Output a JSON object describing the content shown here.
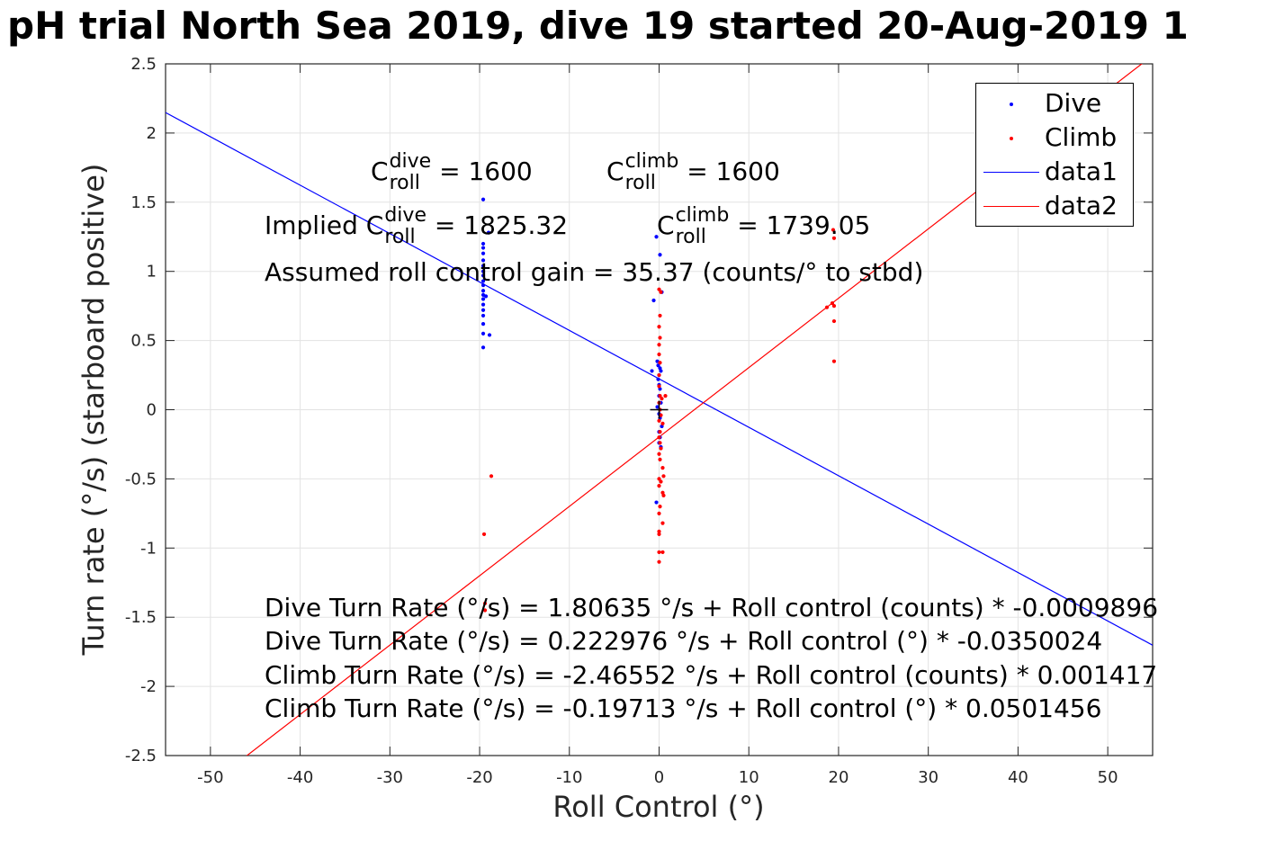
{
  "chart_data": {
    "type": "scatter",
    "title": "pH trial North Sea 2019, dive 19 started 20-Aug-2019 1",
    "xlabel": "Roll Control (°)",
    "ylabel": "Turn rate (°/s) (starboard positive)",
    "xlim": [
      -55,
      55
    ],
    "ylim": [
      -2.5,
      2.5
    ],
    "xticks": [
      -50,
      -40,
      -30,
      -20,
      -10,
      0,
      10,
      20,
      30,
      40,
      50
    ],
    "yticks": [
      -2.5,
      -2,
      -1.5,
      -1,
      -0.5,
      0,
      0.5,
      1,
      1.5,
      2,
      2.5
    ],
    "xtick_labels": [
      "-50",
      "-40",
      "-30",
      "-20",
      "-10",
      "0",
      "10",
      "20",
      "30",
      "40",
      "50"
    ],
    "ytick_labels": [
      "-2.5",
      "-2",
      "-1.5",
      "-1",
      "-0.5",
      "0",
      "0.5",
      "1",
      "1.5",
      "2",
      "2.5"
    ],
    "grid": true,
    "legend_position": "top-right",
    "series": [
      {
        "name": "Dive",
        "kind": "points",
        "color": "#0000ff",
        "points": [
          [
            -19.6,
            1.52
          ],
          [
            -19.6,
            1.2
          ],
          [
            -19.6,
            1.17
          ],
          [
            -19.6,
            1.13
          ],
          [
            -19.6,
            1.08
          ],
          [
            -19.6,
            1.04
          ],
          [
            -19.6,
            1.0
          ],
          [
            -19.6,
            0.97
          ],
          [
            -19.6,
            0.93
          ],
          [
            -19.6,
            0.9
          ],
          [
            -19.6,
            0.86
          ],
          [
            -19.6,
            0.83
          ],
          [
            -19.6,
            0.8
          ],
          [
            -19.6,
            0.76
          ],
          [
            -19.6,
            0.72
          ],
          [
            -19.6,
            0.68
          ],
          [
            -19.6,
            0.62
          ],
          [
            -19.6,
            0.55
          ],
          [
            -19.6,
            0.45
          ],
          [
            -19.3,
            0.82
          ],
          [
            -19.0,
            1.28
          ],
          [
            -18.9,
            0.54
          ],
          [
            -0.3,
            1.25
          ],
          [
            0.1,
            1.12
          ],
          [
            0.3,
            0.85
          ],
          [
            -0.6,
            0.79
          ],
          [
            -0.8,
            0.28
          ],
          [
            -0.2,
            0.35
          ],
          [
            -0.1,
            0.32
          ],
          [
            0.1,
            0.3
          ],
          [
            0.2,
            0.28
          ],
          [
            0.0,
            0.25
          ],
          [
            -0.1,
            0.22
          ],
          [
            0.0,
            0.18
          ],
          [
            0.1,
            0.15
          ],
          [
            0.0,
            0.1
          ],
          [
            0.2,
            0.05
          ],
          [
            -0.2,
            0.02
          ],
          [
            0.0,
            -0.03
          ],
          [
            0.1,
            -0.06
          ],
          [
            0.3,
            -0.12
          ],
          [
            0.0,
            -0.16
          ],
          [
            0.1,
            -0.2
          ],
          [
            0.0,
            -0.24
          ],
          [
            0.2,
            -0.27
          ],
          [
            -0.3,
            -0.67
          ]
        ]
      },
      {
        "name": "Climb",
        "kind": "points",
        "color": "#ff0000",
        "points": [
          [
            -19.5,
            -0.9
          ],
          [
            -18.7,
            -0.48
          ],
          [
            -19.4,
            -1.4
          ],
          [
            -19.4,
            -1.45
          ],
          [
            0.0,
            0.87
          ],
          [
            0.2,
            0.85
          ],
          [
            0.1,
            0.68
          ],
          [
            0.0,
            0.6
          ],
          [
            0.1,
            0.52
          ],
          [
            0.0,
            0.47
          ],
          [
            0.0,
            0.4
          ],
          [
            0.1,
            0.34
          ],
          [
            0.0,
            0.25
          ],
          [
            0.0,
            0.17
          ],
          [
            0.1,
            0.1
          ],
          [
            0.3,
            0.08
          ],
          [
            0.7,
            0.1
          ],
          [
            0.0,
            0.05
          ],
          [
            0.1,
            0.0
          ],
          [
            0.2,
            -0.04
          ],
          [
            0.0,
            -0.08
          ],
          [
            0.4,
            -0.1
          ],
          [
            0.1,
            -0.16
          ],
          [
            0.0,
            -0.2
          ],
          [
            0.1,
            -0.24
          ],
          [
            0.2,
            -0.28
          ],
          [
            0.0,
            -0.32
          ],
          [
            0.1,
            -0.36
          ],
          [
            0.4,
            -0.42
          ],
          [
            0.5,
            -0.48
          ],
          [
            0.0,
            -0.5
          ],
          [
            0.2,
            -0.52
          ],
          [
            0.0,
            -0.55
          ],
          [
            0.4,
            -0.6
          ],
          [
            0.5,
            -0.62
          ],
          [
            0.1,
            -0.7
          ],
          [
            0.0,
            -0.75
          ],
          [
            0.4,
            -0.82
          ],
          [
            0.0,
            -0.88
          ],
          [
            0.0,
            -0.9
          ],
          [
            0.0,
            -1.03
          ],
          [
            0.4,
            -1.03
          ],
          [
            0.0,
            -1.1
          ],
          [
            19.4,
            1.3
          ],
          [
            19.5,
            1.24
          ],
          [
            18.7,
            0.74
          ],
          [
            19.3,
            0.77
          ],
          [
            19.5,
            0.75
          ],
          [
            19.5,
            0.64
          ],
          [
            19.5,
            0.35
          ]
        ]
      },
      {
        "name": "data1",
        "kind": "line",
        "color": "#0000ff",
        "intercept": 0.222976,
        "slope": -0.0350024
      },
      {
        "name": "data2",
        "kind": "line",
        "color": "#ff0000",
        "intercept": -0.19713,
        "slope": 0.0501456
      }
    ],
    "cross_marker": [
      0,
      0
    ],
    "annotations": {
      "c_roll_dive": "= 1600",
      "c_roll_climb": "= 1600",
      "implied_prefix": "Implied",
      "implied_dive": "= 1825.32",
      "implied_climb": "= 1739.05",
      "gain": "Assumed roll control gain = 35.37 (counts/° to stbd)",
      "eq_dive_counts": "Dive Turn Rate (°/s) = 1.80635 °/s + Roll control (counts) * -0.0009896",
      "eq_dive_deg": "Dive Turn Rate (°/s) = 0.222976 °/s + Roll control (°) * -0.0350024",
      "eq_climb_counts": "Climb Turn Rate (°/s) = -2.46552 °/s + Roll control (counts) * 0.001417",
      "eq_climb_deg": "Climb Turn Rate (°/s) = -0.19713 °/s + Roll control (°) * 0.0501456"
    },
    "symbols": {
      "C": "C",
      "roll": "roll",
      "dive": "dive",
      "climb": "climb"
    }
  }
}
